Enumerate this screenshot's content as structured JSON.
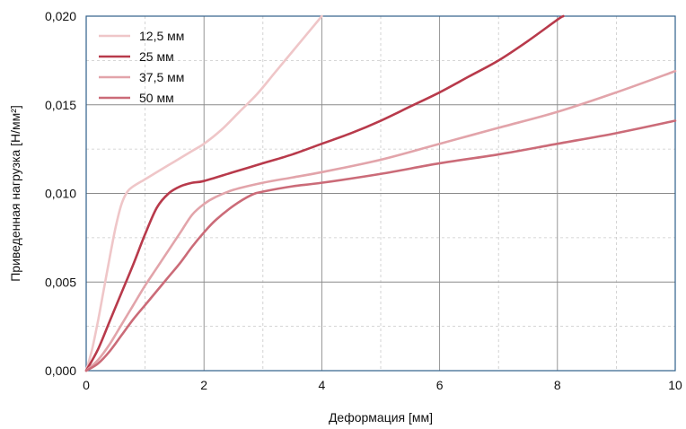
{
  "chart_data": {
    "type": "line",
    "xlabel": "Деформация [мм]",
    "ylabel": "Приведенная нагрузка [Н/мм²]",
    "xlim": [
      0,
      10
    ],
    "ylim": [
      0,
      0.02
    ],
    "x_ticks": [
      "0",
      "2",
      "4",
      "6",
      "8",
      "10"
    ],
    "y_ticks": [
      "0,000",
      "0,005",
      "0,010",
      "0,015",
      "0,020"
    ],
    "grid": true,
    "legend_position": "top-left",
    "series": [
      {
        "name": "12,5 мм",
        "color": "#efc6c8",
        "points": [
          [
            0,
            0
          ],
          [
            0.1,
            0.0012
          ],
          [
            0.2,
            0.0028
          ],
          [
            0.3,
            0.0046
          ],
          [
            0.4,
            0.0064
          ],
          [
            0.5,
            0.0081
          ],
          [
            0.6,
            0.0094
          ],
          [
            0.7,
            0.0101
          ],
          [
            0.8,
            0.0104
          ],
          [
            1.0,
            0.0108
          ],
          [
            1.2,
            0.0112
          ],
          [
            1.5,
            0.0118
          ],
          [
            1.8,
            0.0124
          ],
          [
            2.0,
            0.0128
          ],
          [
            2.3,
            0.0136
          ],
          [
            2.6,
            0.0146
          ],
          [
            2.9,
            0.0156
          ],
          [
            3.2,
            0.0168
          ],
          [
            3.5,
            0.018
          ],
          [
            3.8,
            0.0192
          ],
          [
            4.0,
            0.02
          ]
        ]
      },
      {
        "name": "25 мм",
        "color": "#b83a4b",
        "points": [
          [
            0,
            0
          ],
          [
            0.2,
            0.0012
          ],
          [
            0.4,
            0.0028
          ],
          [
            0.6,
            0.0044
          ],
          [
            0.8,
            0.006
          ],
          [
            1.0,
            0.0077
          ],
          [
            1.2,
            0.0092
          ],
          [
            1.4,
            0.01
          ],
          [
            1.6,
            0.0104
          ],
          [
            1.8,
            0.0106
          ],
          [
            2.0,
            0.0107
          ],
          [
            2.5,
            0.0112
          ],
          [
            3.0,
            0.0117
          ],
          [
            3.5,
            0.0122
          ],
          [
            4.0,
            0.0128
          ],
          [
            4.5,
            0.0134
          ],
          [
            5.0,
            0.0141
          ],
          [
            5.5,
            0.0149
          ],
          [
            6.0,
            0.0157
          ],
          [
            6.5,
            0.0166
          ],
          [
            7.0,
            0.0175
          ],
          [
            7.5,
            0.0186
          ],
          [
            8.0,
            0.0198
          ],
          [
            8.1,
            0.02
          ]
        ]
      },
      {
        "name": "37,5 мм",
        "color": "#e2a4aa",
        "points": [
          [
            0,
            0
          ],
          [
            0.2,
            0.0006
          ],
          [
            0.4,
            0.0015
          ],
          [
            0.6,
            0.0026
          ],
          [
            0.8,
            0.0037
          ],
          [
            1.0,
            0.0048
          ],
          [
            1.2,
            0.0058
          ],
          [
            1.4,
            0.0068
          ],
          [
            1.6,
            0.0078
          ],
          [
            1.8,
            0.0088
          ],
          [
            2.0,
            0.0094
          ],
          [
            2.2,
            0.0098
          ],
          [
            2.5,
            0.0102
          ],
          [
            3.0,
            0.0106
          ],
          [
            3.5,
            0.0109
          ],
          [
            4.0,
            0.0112
          ],
          [
            5.0,
            0.0119
          ],
          [
            6.0,
            0.0128
          ],
          [
            7.0,
            0.0137
          ],
          [
            8.0,
            0.0146
          ],
          [
            9.0,
            0.0157
          ],
          [
            10.0,
            0.0169
          ]
        ]
      },
      {
        "name": "50 мм",
        "color": "#cb6b78",
        "points": [
          [
            0,
            0
          ],
          [
            0.2,
            0.0004
          ],
          [
            0.4,
            0.0011
          ],
          [
            0.6,
            0.002
          ],
          [
            0.8,
            0.0029
          ],
          [
            1.0,
            0.0037
          ],
          [
            1.2,
            0.0045
          ],
          [
            1.4,
            0.0053
          ],
          [
            1.6,
            0.0061
          ],
          [
            1.8,
            0.007
          ],
          [
            2.0,
            0.0078
          ],
          [
            2.2,
            0.0085
          ],
          [
            2.5,
            0.0093
          ],
          [
            2.8,
            0.0099
          ],
          [
            3.0,
            0.0101
          ],
          [
            3.5,
            0.0104
          ],
          [
            4.0,
            0.0106
          ],
          [
            5.0,
            0.0111
          ],
          [
            6.0,
            0.0117
          ],
          [
            7.0,
            0.0122
          ],
          [
            8.0,
            0.0128
          ],
          [
            9.0,
            0.0134
          ],
          [
            10.0,
            0.0141
          ]
        ]
      }
    ]
  }
}
